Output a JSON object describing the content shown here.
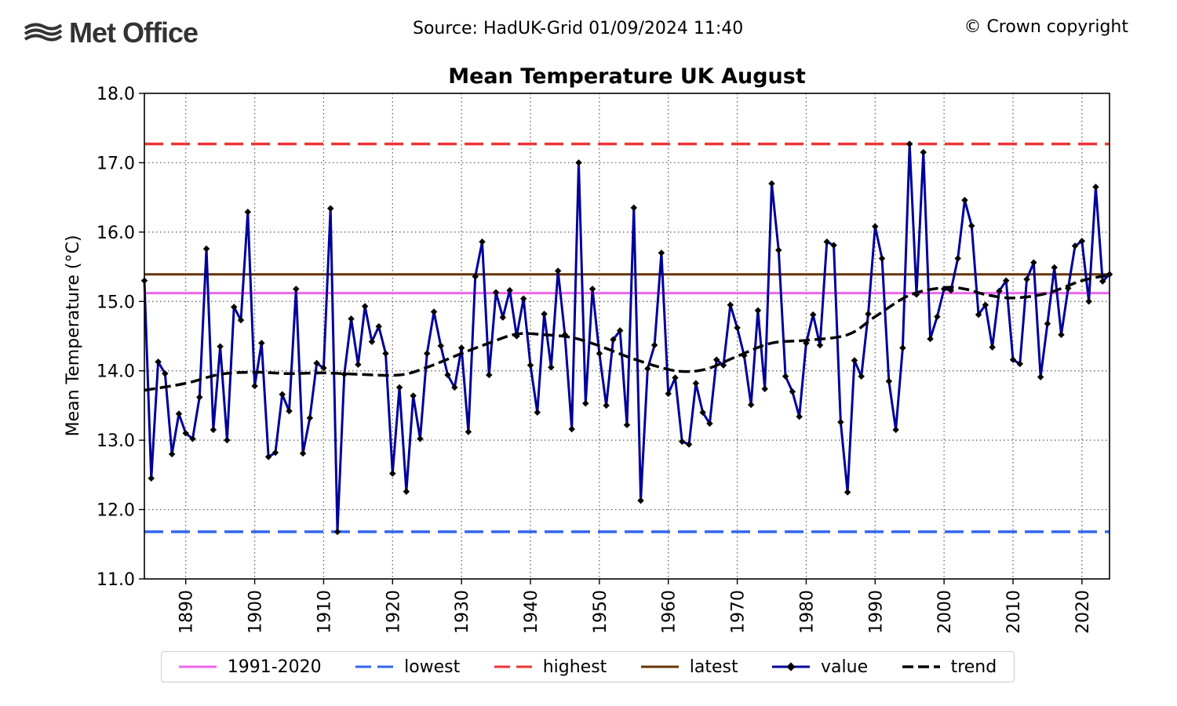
{
  "header": {
    "logo_text": "Met Office",
    "source": "Source: HadUK-Grid 01/09/2024 11:40",
    "copyright": "© Crown copyright"
  },
  "colors": {
    "baseline": "#ee66ee",
    "lowest": "#3366ee",
    "highest": "#ee3333",
    "latest": "#663300",
    "value": "#000099",
    "trend": "#000000"
  },
  "chart_data": {
    "type": "line",
    "title": "Mean Temperature UK August",
    "xlabel": "",
    "ylabel": "Mean Temperature (°C)",
    "xlim": [
      1884,
      2024
    ],
    "ylim": [
      11.0,
      18.0
    ],
    "x_ticks": [
      1890,
      1900,
      1910,
      1920,
      1930,
      1940,
      1950,
      1960,
      1970,
      1980,
      1990,
      2000,
      2010,
      2020
    ],
    "y_ticks": [
      "11.0",
      "12.0",
      "13.0",
      "14.0",
      "15.0",
      "16.0",
      "17.0",
      "18.0"
    ],
    "grid": true,
    "legend_position": "bottom",
    "reference_lines": {
      "baseline_1991_2020": 15.12,
      "lowest": 11.68,
      "highest": 17.27,
      "latest": 15.39
    },
    "legend": [
      "1991-2020",
      "lowest",
      "highest",
      "latest",
      "value",
      "trend"
    ],
    "series": [
      {
        "name": "value",
        "x_start": 1884,
        "values": [
          15.3,
          12.45,
          14.13,
          13.96,
          12.8,
          13.38,
          13.1,
          13.02,
          13.62,
          15.76,
          13.15,
          14.35,
          13.0,
          14.92,
          14.73,
          16.29,
          13.78,
          14.4,
          12.76,
          12.82,
          13.66,
          13.42,
          15.18,
          12.81,
          13.32,
          14.11,
          14.04,
          16.34,
          11.68,
          13.95,
          14.75,
          14.09,
          14.93,
          14.42,
          14.64,
          14.25,
          12.52,
          13.76,
          12.26,
          13.64,
          13.02,
          14.25,
          14.85,
          14.36,
          13.94,
          13.76,
          14.33,
          13.12,
          15.36,
          15.86,
          13.94,
          15.13,
          14.77,
          15.16,
          14.5,
          15.04,
          14.08,
          13.4,
          14.82,
          14.05,
          15.44,
          14.52,
          13.16,
          17.0,
          13.53,
          15.18,
          14.25,
          13.5,
          14.45,
          14.58,
          13.22,
          16.35,
          12.13,
          14.03,
          14.37,
          15.7,
          13.67,
          13.9,
          12.98,
          12.94,
          13.82,
          13.4,
          13.24,
          14.16,
          14.08,
          14.95,
          14.62,
          14.22,
          13.51,
          14.87,
          13.74,
          16.7,
          15.74,
          13.92,
          13.7,
          13.34,
          14.4,
          14.81,
          14.37,
          15.86,
          15.81,
          13.26,
          12.25,
          14.15,
          13.92,
          14.82,
          16.08,
          15.62,
          13.85,
          13.15,
          14.33,
          17.27,
          15.1,
          17.15,
          14.46,
          14.78,
          15.18,
          15.16,
          15.62,
          16.46,
          16.09,
          14.81,
          14.95,
          14.34,
          15.15,
          15.3,
          14.16,
          14.1,
          15.32,
          15.56,
          13.91,
          14.68,
          15.49,
          14.52,
          15.19,
          15.8,
          15.87,
          15.0,
          16.65,
          15.29,
          15.39
        ]
      },
      {
        "name": "trend",
        "x": [
          1884,
          1890,
          1895,
          1900,
          1905,
          1910,
          1915,
          1921,
          1925,
          1930,
          1934,
          1938,
          1942,
          1946,
          1950,
          1955,
          1960,
          1963,
          1966,
          1970,
          1975,
          1980,
          1986,
          1990,
          1995,
          2000,
          2003,
          2006,
          2010,
          2015,
          2020,
          2024
        ],
        "values": [
          13.72,
          13.82,
          13.95,
          13.98,
          13.96,
          13.97,
          13.95,
          13.94,
          14.05,
          14.25,
          14.4,
          14.53,
          14.52,
          14.48,
          14.36,
          14.17,
          14.02,
          13.99,
          14.04,
          14.21,
          14.4,
          14.44,
          14.52,
          14.78,
          15.09,
          15.2,
          15.18,
          15.1,
          15.05,
          15.12,
          15.3,
          15.38
        ]
      }
    ]
  }
}
